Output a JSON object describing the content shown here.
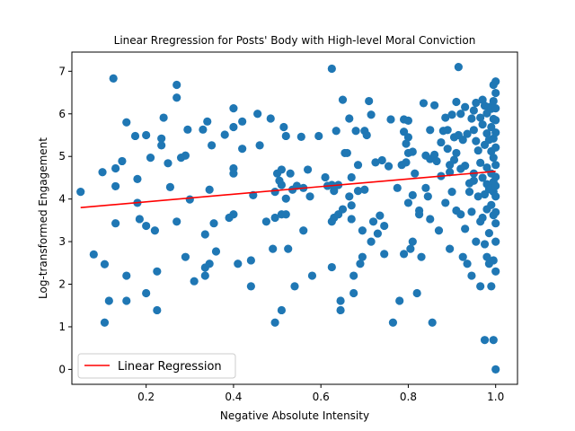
{
  "chart_data": {
    "type": "scatter",
    "title": "Linear Rregression for Posts' Body with High-level Moral Conviction",
    "xlabel": "Negative Absolute Intensity",
    "ylabel": "Log-transformed Engagement",
    "xlim": [
      0.03,
      1.05
    ],
    "ylim": [
      -0.35,
      7.45
    ],
    "xticks": [
      0.2,
      0.4,
      0.6,
      0.8,
      1.0
    ],
    "xtick_labels": [
      "0.2",
      "0.4",
      "0.6",
      "0.8",
      "1.0"
    ],
    "yticks": [
      0,
      1,
      2,
      3,
      4,
      5,
      6,
      7
    ],
    "ytick_labels": [
      "0",
      "1",
      "2",
      "3",
      "4",
      "5",
      "6",
      "7"
    ],
    "grid": false,
    "legend_position": "lower-left",
    "colors": {
      "points": "#1f77b4",
      "line": "#ff0000"
    },
    "series": [
      {
        "type": "scatter",
        "points": [
          [
            0.05,
            4.17
          ],
          [
            0.08,
            2.7
          ],
          [
            0.1,
            4.63
          ],
          [
            0.105,
            2.47
          ],
          [
            0.105,
            1.1
          ],
          [
            0.115,
            1.61
          ],
          [
            0.125,
            6.83
          ],
          [
            0.13,
            4.72
          ],
          [
            0.13,
            4.3
          ],
          [
            0.13,
            3.43
          ],
          [
            0.145,
            4.89
          ],
          [
            0.155,
            5.8
          ],
          [
            0.155,
            2.2
          ],
          [
            0.155,
            1.61
          ],
          [
            0.175,
            5.48
          ],
          [
            0.18,
            4.47
          ],
          [
            0.18,
            3.91
          ],
          [
            0.185,
            3.53
          ],
          [
            0.2,
            5.5
          ],
          [
            0.2,
            3.37
          ],
          [
            0.2,
            1.79
          ],
          [
            0.21,
            4.97
          ],
          [
            0.22,
            3.26
          ],
          [
            0.225,
            2.3
          ],
          [
            0.225,
            1.39
          ],
          [
            0.235,
            5.42
          ],
          [
            0.235,
            5.26
          ],
          [
            0.24,
            5.91
          ],
          [
            0.25,
            4.84
          ],
          [
            0.255,
            4.28
          ],
          [
            0.27,
            6.68
          ],
          [
            0.27,
            6.38
          ],
          [
            0.27,
            3.47
          ],
          [
            0.28,
            4.97
          ],
          [
            0.29,
            5.02
          ],
          [
            0.29,
            2.64
          ],
          [
            0.295,
            5.63
          ],
          [
            0.3,
            3.99
          ],
          [
            0.31,
            2.07
          ],
          [
            0.33,
            5.63
          ],
          [
            0.335,
            3.17
          ],
          [
            0.335,
            2.39
          ],
          [
            0.335,
            2.2
          ],
          [
            0.34,
            5.82
          ],
          [
            0.345,
            4.22
          ],
          [
            0.345,
            2.48
          ],
          [
            0.35,
            5.26
          ],
          [
            0.355,
            3.43
          ],
          [
            0.36,
            2.77
          ],
          [
            0.38,
            5.51
          ],
          [
            0.39,
            3.56
          ],
          [
            0.4,
            6.13
          ],
          [
            0.4,
            5.69
          ],
          [
            0.4,
            4.72
          ],
          [
            0.4,
            4.6
          ],
          [
            0.4,
            3.64
          ],
          [
            0.41,
            2.48
          ],
          [
            0.42,
            5.82
          ],
          [
            0.42,
            5.18
          ],
          [
            0.44,
            1.95
          ],
          [
            0.44,
            2.56
          ],
          [
            0.445,
            4.09
          ],
          [
            0.455,
            6.0
          ],
          [
            0.46,
            5.26
          ],
          [
            0.475,
            3.47
          ],
          [
            0.485,
            5.89
          ],
          [
            0.49,
            2.83
          ],
          [
            0.495,
            4.17
          ],
          [
            0.495,
            3.56
          ],
          [
            0.495,
            1.1
          ],
          [
            0.5,
            4.6
          ],
          [
            0.505,
            4.43
          ],
          [
            0.51,
            4.69
          ],
          [
            0.51,
            4.33
          ],
          [
            0.51,
            3.64
          ],
          [
            0.51,
            1.39
          ],
          [
            0.515,
            5.69
          ],
          [
            0.52,
            5.48
          ],
          [
            0.52,
            4.01
          ],
          [
            0.52,
            3.64
          ],
          [
            0.525,
            2.83
          ],
          [
            0.53,
            4.6
          ],
          [
            0.535,
            4.22
          ],
          [
            0.54,
            1.95
          ],
          [
            0.545,
            4.31
          ],
          [
            0.555,
            5.46
          ],
          [
            0.56,
            4.26
          ],
          [
            0.56,
            3.26
          ],
          [
            0.57,
            4.69
          ],
          [
            0.575,
            4.06
          ],
          [
            0.58,
            2.2
          ],
          [
            0.595,
            5.48
          ],
          [
            0.61,
            4.51
          ],
          [
            0.615,
            4.31
          ],
          [
            0.625,
            7.06
          ],
          [
            0.625,
            4.33
          ],
          [
            0.625,
            3.47
          ],
          [
            0.625,
            2.4
          ],
          [
            0.63,
            4.19
          ],
          [
            0.63,
            3.56
          ],
          [
            0.635,
            5.6
          ],
          [
            0.64,
            4.33
          ],
          [
            0.64,
            3.64
          ],
          [
            0.645,
            1.61
          ],
          [
            0.645,
            1.39
          ],
          [
            0.65,
            6.33
          ],
          [
            0.65,
            3.76
          ],
          [
            0.655,
            5.08
          ],
          [
            0.66,
            5.08
          ],
          [
            0.665,
            5.89
          ],
          [
            0.665,
            4.06
          ],
          [
            0.67,
            4.51
          ],
          [
            0.67,
            3.85
          ],
          [
            0.67,
            3.53
          ],
          [
            0.675,
            1.79
          ],
          [
            0.675,
            2.2
          ],
          [
            0.68,
            5.6
          ],
          [
            0.685,
            4.8
          ],
          [
            0.685,
            4.19
          ],
          [
            0.69,
            2.48
          ],
          [
            0.695,
            3.26
          ],
          [
            0.695,
            2.64
          ],
          [
            0.7,
            5.6
          ],
          [
            0.7,
            4.22
          ],
          [
            0.705,
            5.5
          ],
          [
            0.71,
            6.3
          ],
          [
            0.715,
            5.98
          ],
          [
            0.715,
            3.0
          ],
          [
            0.72,
            3.47
          ],
          [
            0.725,
            4.86
          ],
          [
            0.73,
            3.19
          ],
          [
            0.735,
            3.61
          ],
          [
            0.74,
            4.91
          ],
          [
            0.745,
            3.37
          ],
          [
            0.745,
            2.71
          ],
          [
            0.755,
            4.77
          ],
          [
            0.76,
            5.87
          ],
          [
            0.765,
            1.1
          ],
          [
            0.775,
            4.26
          ],
          [
            0.78,
            1.61
          ],
          [
            0.785,
            4.8
          ],
          [
            0.79,
            2.71
          ],
          [
            0.79,
            5.87
          ],
          [
            0.79,
            5.58
          ],
          [
            0.795,
            5.3
          ],
          [
            0.795,
            4.86
          ],
          [
            0.8,
            5.84
          ],
          [
            0.8,
            5.08
          ],
          [
            0.8,
            5.45
          ],
          [
            0.8,
            3.91
          ],
          [
            0.805,
            2.83
          ],
          [
            0.81,
            5.11
          ],
          [
            0.81,
            3.0
          ],
          [
            0.81,
            4.09
          ],
          [
            0.815,
            4.6
          ],
          [
            0.82,
            1.79
          ],
          [
            0.825,
            3.73
          ],
          [
            0.825,
            3.64
          ],
          [
            0.83,
            2.64
          ],
          [
            0.835,
            6.25
          ],
          [
            0.84,
            5.02
          ],
          [
            0.84,
            4.26
          ],
          [
            0.845,
            4.06
          ],
          [
            0.85,
            5.62
          ],
          [
            0.85,
            4.94
          ],
          [
            0.85,
            3.53
          ],
          [
            0.855,
            1.1
          ],
          [
            0.86,
            6.2
          ],
          [
            0.86,
            5.04
          ],
          [
            0.865,
            4.89
          ],
          [
            0.87,
            3.26
          ],
          [
            0.875,
            5.33
          ],
          [
            0.875,
            4.54
          ],
          [
            0.88,
            5.6
          ],
          [
            0.885,
            5.91
          ],
          [
            0.885,
            3.91
          ],
          [
            0.89,
            5.62
          ],
          [
            0.89,
            5.18
          ],
          [
            0.895,
            4.8
          ],
          [
            0.895,
            4.63
          ],
          [
            0.895,
            2.83
          ],
          [
            0.9,
            5.98
          ],
          [
            0.9,
            4.17
          ],
          [
            0.905,
            5.45
          ],
          [
            0.905,
            4.92
          ],
          [
            0.91,
            6.28
          ],
          [
            0.91,
            5.08
          ],
          [
            0.91,
            3.73
          ],
          [
            0.915,
            7.1
          ],
          [
            0.915,
            5.5
          ],
          [
            0.92,
            6.0
          ],
          [
            0.92,
            4.71
          ],
          [
            0.92,
            3.64
          ],
          [
            0.925,
            5.39
          ],
          [
            0.925,
            2.64
          ],
          [
            0.93,
            6.16
          ],
          [
            0.93,
            4.78
          ],
          [
            0.93,
            3.3
          ],
          [
            0.935,
            5.53
          ],
          [
            0.935,
            2.48
          ],
          [
            0.94,
            4.37
          ],
          [
            0.94,
            4.17
          ],
          [
            0.945,
            5.89
          ],
          [
            0.945,
            3.7
          ],
          [
            0.945,
            2.2
          ],
          [
            0.95,
            6.08
          ],
          [
            0.95,
            5.62
          ],
          [
            0.95,
            4.6
          ],
          [
            0.95,
            4.43
          ],
          [
            0.955,
            6.26
          ],
          [
            0.955,
            5.36
          ],
          [
            0.955,
            3.0
          ],
          [
            0.96,
            5.14
          ],
          [
            0.96,
            4.06
          ],
          [
            0.965,
            5.91
          ],
          [
            0.965,
            4.85
          ],
          [
            0.965,
            3.47
          ],
          [
            0.965,
            1.95
          ],
          [
            0.97,
            6.33
          ],
          [
            0.97,
            5.75
          ],
          [
            0.97,
            4.5
          ],
          [
            0.97,
            3.56
          ],
          [
            0.975,
            6.19
          ],
          [
            0.975,
            5.27
          ],
          [
            0.975,
            4.11
          ],
          [
            0.975,
            2.94
          ],
          [
            0.975,
            0.69
          ],
          [
            0.98,
            6.01
          ],
          [
            0.98,
            5.54
          ],
          [
            0.98,
            4.74
          ],
          [
            0.98,
            4.35
          ],
          [
            0.98,
            3.76
          ],
          [
            0.98,
            2.64
          ],
          [
            0.985,
            6.16
          ],
          [
            0.985,
            5.39
          ],
          [
            0.985,
            4.23
          ],
          [
            0.985,
            3.2
          ],
          [
            0.985,
            2.48
          ],
          [
            0.99,
            6.12
          ],
          [
            0.99,
            5.69
          ],
          [
            0.99,
            5.12
          ],
          [
            0.99,
            4.6
          ],
          [
            0.99,
            4.26
          ],
          [
            0.99,
            3.86
          ],
          [
            0.99,
            1.95
          ],
          [
            0.995,
            6.68
          ],
          [
            0.995,
            6.3
          ],
          [
            0.995,
            5.88
          ],
          [
            0.995,
            5.42
          ],
          [
            0.995,
            4.97
          ],
          [
            0.995,
            4.4
          ],
          [
            0.995,
            4.17
          ],
          [
            0.995,
            3.62
          ],
          [
            0.995,
            2.56
          ],
          [
            0.995,
            0.69
          ],
          [
            1.0,
            6.76
          ],
          [
            1.0,
            6.49
          ],
          [
            1.0,
            6.13
          ],
          [
            1.0,
            5.85
          ],
          [
            1.0,
            5.56
          ],
          [
            1.0,
            5.21
          ],
          [
            1.0,
            4.8
          ],
          [
            1.0,
            4.52
          ],
          [
            1.0,
            4.31
          ],
          [
            1.0,
            4.06
          ],
          [
            1.0,
            3.69
          ],
          [
            1.0,
            3.43
          ],
          [
            1.0,
            3.0
          ],
          [
            1.0,
            2.3
          ],
          [
            1.0,
            0.0
          ]
        ]
      },
      {
        "type": "line",
        "name": "Linear Regression",
        "points": [
          [
            0.05,
            3.8
          ],
          [
            1.0,
            4.65
          ]
        ]
      }
    ]
  }
}
